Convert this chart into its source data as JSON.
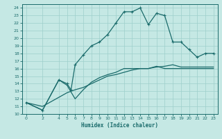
{
  "title": "",
  "xlabel": "Humidex (Indice chaleur)",
  "ylabel": "",
  "xlim": [
    -0.5,
    23.5
  ],
  "ylim": [
    10,
    24.5
  ],
  "xticks": [
    0,
    2,
    4,
    5,
    6,
    7,
    8,
    9,
    10,
    11,
    12,
    13,
    14,
    15,
    16,
    17,
    18,
    19,
    20,
    21,
    22,
    23
  ],
  "yticks": [
    10,
    11,
    12,
    13,
    14,
    15,
    16,
    17,
    18,
    19,
    20,
    21,
    22,
    23,
    24
  ],
  "bg_color": "#c5e8e4",
  "grid_color": "#9ecfcb",
  "line_color": "#1a6b6b",
  "line1_x": [
    0,
    2,
    4,
    5,
    5.5,
    6,
    7,
    8,
    9,
    10,
    11,
    12,
    13,
    14,
    15,
    16,
    17,
    18,
    19,
    20,
    21,
    22,
    23
  ],
  "line1_y": [
    11.5,
    10.5,
    14.5,
    14.0,
    13.2,
    16.5,
    17.8,
    19.0,
    19.5,
    20.5,
    22.0,
    23.5,
    23.5,
    24.0,
    21.8,
    23.3,
    23.0,
    19.5,
    19.5,
    18.5,
    17.5,
    18.0,
    18.0
  ],
  "line2_x": [
    0,
    2,
    4,
    5,
    6,
    7,
    8,
    9,
    10,
    11,
    12,
    13,
    14,
    15,
    16,
    17,
    18,
    19,
    20,
    21,
    22,
    23
  ],
  "line2_y": [
    11.5,
    10.5,
    14.5,
    13.8,
    12.0,
    13.2,
    14.2,
    14.8,
    15.2,
    15.5,
    16.0,
    16.0,
    16.0,
    16.0,
    16.3,
    16.0,
    16.0,
    16.0,
    16.0,
    16.0,
    16.0,
    16.0
  ],
  "line3_x": [
    0,
    2,
    4,
    5,
    6,
    7,
    8,
    9,
    10,
    11,
    12,
    13,
    14,
    15,
    16,
    17,
    18,
    19,
    20,
    21,
    22,
    23
  ],
  "line3_y": [
    11.5,
    11.0,
    12.2,
    12.8,
    13.2,
    13.5,
    14.0,
    14.5,
    15.0,
    15.2,
    15.5,
    15.8,
    16.0,
    16.0,
    16.2,
    16.3,
    16.5,
    16.2,
    16.2,
    16.2,
    16.2,
    16.2
  ]
}
